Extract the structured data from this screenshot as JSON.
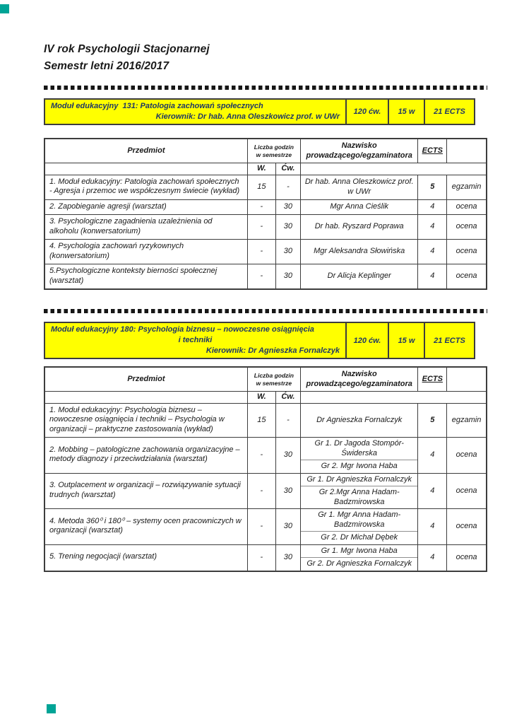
{
  "page_title": {
    "line1": "IV rok Psychologii Stacjonarnej",
    "line2": "Semestr letni 2016/2017"
  },
  "table_headers": {
    "subject": "Przedmiot",
    "hours_l1": "Liczba godzin",
    "hours_l2": "w semestrze",
    "w": "W.",
    "cw": "Ćw.",
    "name_l1": "Nazwisko",
    "name_l2": "prowadzącego/egzaminatora",
    "ects": "ECTS"
  },
  "modules": [
    {
      "banner": {
        "lines": [
          {
            "text": "Moduł edukacyjny  131: Patologia zachowań społecznych",
            "align": "left"
          },
          {
            "text": "Kierownik: Dr hab. Anna Oleszkowicz prof. w UWr",
            "align": "right"
          }
        ],
        "cells": [
          "120 ćw.",
          "15 w",
          "21 ECTS"
        ]
      },
      "table": {
        "rows": [
          {
            "subject": "1. Moduł edukacyjny: Patologia zachowań społecznych - Agresja i przemoc we współczesnym świecie (wykład)",
            "w": "15",
            "cw": "-",
            "names": [
              "Dr hab. Anna Oleszkowicz prof. w UWr"
            ],
            "ects": "5",
            "ects_bold": true,
            "grade": "egzamin"
          },
          {
            "subject": "2. Zapobieganie agresji (warsztat)",
            "w": "-",
            "cw": "30",
            "names": [
              "Mgr Anna Cieślik"
            ],
            "ects": "4",
            "ects_bold": false,
            "grade": "ocena"
          },
          {
            "subject": "3. Psychologiczne zagadnienia uzależnienia od alkoholu (konwersatorium)",
            "w": "-",
            "cw": "30",
            "names": [
              "Dr hab. Ryszard Poprawa"
            ],
            "ects": "4",
            "ects_bold": false,
            "grade": "ocena"
          },
          {
            "subject": "4. Psychologia zachowań ryzykownych (konwersatorium)",
            "w": "-",
            "cw": "30",
            "names": [
              "Mgr Aleksandra Słowińska"
            ],
            "ects": "4",
            "ects_bold": false,
            "grade": "ocena"
          },
          {
            "subject": "5.Psychologiczne konteksty bierności społecznej (warsztat)",
            "w": "-",
            "cw": "30",
            "names": [
              "Dr Alicja Keplinger"
            ],
            "ects": "4",
            "ects_bold": false,
            "grade": "ocena"
          }
        ]
      }
    },
    {
      "banner": {
        "lines": [
          {
            "text": "Moduł edukacyjny 180: Psychologia biznesu – nowoczesne osiągnięcia",
            "align": "left"
          },
          {
            "text": "i techniki",
            "align": "center"
          },
          {
            "text": "Kierownik: Dr Agnieszka Fornalczyk",
            "align": "right"
          }
        ],
        "cells": [
          "120 ćw.",
          "15 w",
          "21 ECTS"
        ]
      },
      "table": {
        "rows": [
          {
            "subject": "1. Moduł edukacyjny: Psychologia biznesu – nowoczesne osiągnięcia i techniki – Psychologia w organizacji – praktyczne zastosowania (wykład)",
            "w": "15",
            "cw": "-",
            "names": [
              "Dr Agnieszka Fornalczyk"
            ],
            "ects": "5",
            "ects_bold": true,
            "grade": "egzamin"
          },
          {
            "subject": "2. Mobbing – patologiczne zachowania organizacyjne – metody diagnozy i przeciwdziałania (warsztat)",
            "w": "-",
            "cw": "30",
            "names": [
              "Gr 1. Dr Jagoda Stompór-Świderska",
              "Gr 2. Mgr Iwona Haba"
            ],
            "ects": "4",
            "ects_bold": false,
            "grade": "ocena"
          },
          {
            "subject": "3. Outplacement w organizacji – rozwiązywanie sytuacji trudnych (warsztat)",
            "w": "-",
            "cw": "30",
            "names": [
              "Gr 1. Dr Agnieszka Fornalczyk",
              "Gr 2.Mgr Anna Hadam-Badzmirowska"
            ],
            "ects": "4",
            "ects_bold": false,
            "grade": "ocena"
          },
          {
            "subject": "4. Metoda 360⁰ i 180⁰ – systemy ocen pracowniczych w organizacji (warsztat)",
            "w": "-",
            "cw": "30",
            "names": [
              "Gr 1. Mgr Anna Hadam-Badzmirowska",
              "Gr 2. Dr Michał Dębek"
            ],
            "ects": "4",
            "ects_bold": false,
            "grade": "ocena"
          },
          {
            "subject": "5. Trening negocjacji (warsztat)",
            "w": "-",
            "cw": "30",
            "names": [
              "Gr 1. Mgr Iwona Haba",
              "Gr 2. Dr Agnieszka Fornalczyk"
            ],
            "ects": "4",
            "ects_bold": false,
            "grade": "ocena"
          }
        ]
      }
    }
  ],
  "colors": {
    "banner_bg": "#FFFF00",
    "banner_text": "#1F3864",
    "marker": "#00A496"
  }
}
